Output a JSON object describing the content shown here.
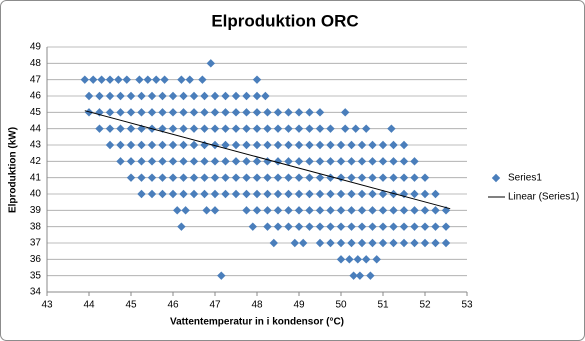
{
  "chart_data": {
    "type": "scatter",
    "title": "Elproduktion ORC",
    "x_label": "Vattentemperatur in i kondensor (°C)",
    "y_label": "Elproduktion (kW)",
    "xlim": [
      43,
      53
    ],
    "xticks": [
      43,
      44,
      45,
      46,
      47,
      48,
      49,
      50,
      51,
      52,
      53
    ],
    "ylim": [
      34,
      49
    ],
    "yticks": [
      34,
      35,
      36,
      37,
      38,
      39,
      40,
      41,
      42,
      43,
      44,
      45,
      46,
      47,
      48,
      49
    ],
    "grid": true,
    "legend": "right",
    "series": [
      {
        "name": "Series1",
        "color": "#4a7ebb",
        "style": "marker",
        "x": [
          46.9,
          43.9,
          44.1,
          44.3,
          44.5,
          44.7,
          44.9,
          45.2,
          45.4,
          45.6,
          45.8,
          46.2,
          46.4,
          46.7,
          48.0,
          44,
          44.25,
          44.5,
          44.75,
          45,
          45.25,
          45.5,
          45.75,
          46,
          46.25,
          46.5,
          46.75,
          47,
          47.25,
          47.5,
          47.75,
          48,
          48.2,
          44,
          44.25,
          44.5,
          44.75,
          45,
          45.25,
          45.5,
          45.75,
          46,
          46.25,
          46.5,
          46.75,
          47,
          47.25,
          47.5,
          47.75,
          48,
          48.25,
          48.5,
          48.75,
          49,
          49.25,
          49.5,
          50.1,
          44.25,
          44.5,
          44.75,
          45,
          45.25,
          45.5,
          45.75,
          46,
          46.25,
          46.5,
          46.75,
          47,
          47.25,
          47.5,
          47.75,
          48,
          48.25,
          48.5,
          48.75,
          49,
          49.25,
          49.5,
          49.75,
          50.1,
          50.35,
          50.6,
          51.2,
          44.5,
          44.75,
          45,
          45.25,
          45.5,
          45.75,
          46,
          46.25,
          46.5,
          46.75,
          47,
          47.25,
          47.5,
          47.75,
          48,
          48.25,
          48.5,
          48.75,
          49,
          49.25,
          49.5,
          49.75,
          50,
          50.25,
          50.5,
          50.75,
          51,
          51.25,
          51.5,
          44.75,
          45,
          45.25,
          45.5,
          45.75,
          46,
          46.25,
          46.5,
          46.75,
          47,
          47.25,
          47.5,
          47.75,
          48,
          48.25,
          48.5,
          48.75,
          49,
          49.25,
          49.5,
          49.75,
          50,
          50.25,
          50.5,
          50.75,
          51,
          51.25,
          51.5,
          51.75,
          45,
          45.25,
          45.5,
          45.75,
          46,
          46.25,
          46.5,
          46.75,
          47,
          47.25,
          47.5,
          47.75,
          48,
          48.25,
          48.5,
          48.75,
          49,
          49.25,
          49.5,
          49.75,
          50,
          50.25,
          50.5,
          50.75,
          51,
          51.25,
          51.5,
          51.75,
          52,
          45.25,
          45.5,
          45.75,
          46,
          46.25,
          46.5,
          46.75,
          47,
          47.25,
          47.5,
          47.75,
          48,
          48.25,
          48.5,
          48.75,
          49,
          49.25,
          49.5,
          49.75,
          50,
          50.25,
          50.5,
          50.75,
          51,
          51.25,
          51.5,
          51.75,
          52,
          52.25,
          46.1,
          46.3,
          46.8,
          47,
          47.75,
          48,
          48.25,
          48.5,
          48.75,
          49,
          49.25,
          49.5,
          49.75,
          50,
          50.25,
          50.5,
          50.75,
          51,
          51.25,
          51.5,
          51.75,
          52,
          52.25,
          52.5,
          46.2,
          47.9,
          48.25,
          48.5,
          48.75,
          49,
          49.25,
          49.5,
          49.75,
          50,
          50.25,
          50.5,
          50.75,
          51,
          51.25,
          51.5,
          51.75,
          52,
          52.25,
          52.5,
          48.4,
          48.9,
          49.1,
          49.5,
          49.75,
          50,
          50.25,
          50.5,
          50.75,
          51,
          51.25,
          51.5,
          51.75,
          52,
          52.25,
          52.5,
          50.0,
          50.2,
          50.4,
          50.6,
          50.85,
          47.15,
          50.3,
          50.45,
          50.7
        ],
        "values": [
          48,
          47,
          47,
          47,
          47,
          47,
          47,
          47,
          47,
          47,
          47,
          47,
          47,
          47,
          47,
          46,
          46,
          46,
          46,
          46,
          46,
          46,
          46,
          46,
          46,
          46,
          46,
          46,
          46,
          46,
          46,
          46,
          46,
          45,
          45,
          45,
          45,
          45,
          45,
          45,
          45,
          45,
          45,
          45,
          45,
          45,
          45,
          45,
          45,
          45,
          45,
          45,
          45,
          45,
          45,
          45,
          45,
          44,
          44,
          44,
          44,
          44,
          44,
          44,
          44,
          44,
          44,
          44,
          44,
          44,
          44,
          44,
          44,
          44,
          44,
          44,
          44,
          44,
          44,
          44,
          44,
          44,
          44,
          44,
          43,
          43,
          43,
          43,
          43,
          43,
          43,
          43,
          43,
          43,
          43,
          43,
          43,
          43,
          43,
          43,
          43,
          43,
          43,
          43,
          43,
          43,
          43,
          43,
          43,
          43,
          43,
          43,
          43,
          42,
          42,
          42,
          42,
          42,
          42,
          42,
          42,
          42,
          42,
          42,
          42,
          42,
          42,
          42,
          42,
          42,
          42,
          42,
          42,
          42,
          42,
          42,
          42,
          42,
          42,
          42,
          42,
          42,
          41,
          41,
          41,
          41,
          41,
          41,
          41,
          41,
          41,
          41,
          41,
          41,
          41,
          41,
          41,
          41,
          41,
          41,
          41,
          41,
          41,
          41,
          41,
          41,
          41,
          41,
          41,
          41,
          41,
          40,
          40,
          40,
          40,
          40,
          40,
          40,
          40,
          40,
          40,
          40,
          40,
          40,
          40,
          40,
          40,
          40,
          40,
          40,
          40,
          40,
          40,
          40,
          40,
          40,
          40,
          40,
          40,
          40,
          39,
          39,
          39,
          39,
          39,
          39,
          39,
          39,
          39,
          39,
          39,
          39,
          39,
          39,
          39,
          39,
          39,
          39,
          39,
          39,
          39,
          39,
          39,
          39,
          38,
          38,
          38,
          38,
          38,
          38,
          38,
          38,
          38,
          38,
          38,
          38,
          38,
          38,
          38,
          38,
          38,
          38,
          38,
          38,
          37,
          37,
          37,
          37,
          37,
          37,
          37,
          37,
          37,
          37,
          37,
          37,
          37,
          37,
          37,
          37,
          36,
          36,
          36,
          36,
          36,
          35,
          35,
          35,
          35
        ]
      },
      {
        "name": "Linear (Series1)",
        "color": "#000000",
        "style": "line",
        "x": [
          43.9,
          52.6
        ],
        "values": [
          45.1,
          39.1
        ]
      }
    ]
  }
}
